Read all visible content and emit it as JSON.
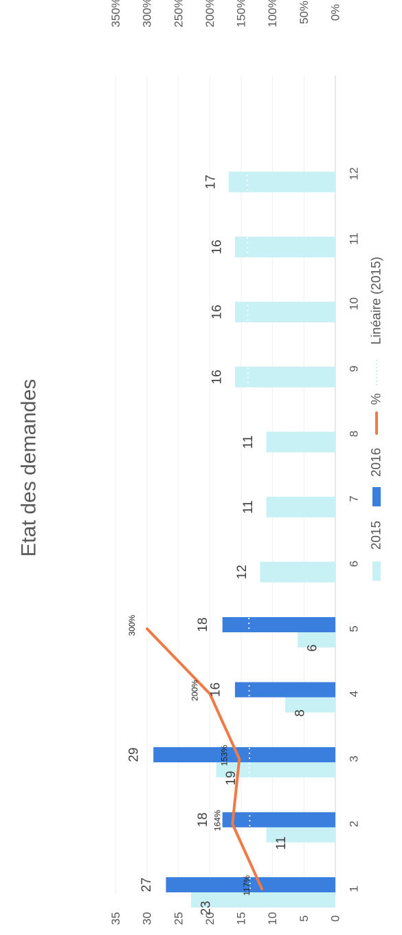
{
  "chart_data": {
    "type": "bar",
    "title": "Etat des demandes",
    "categories": [
      "1",
      "2",
      "3",
      "4",
      "5",
      "6",
      "7",
      "8",
      "9",
      "10",
      "11",
      "12"
    ],
    "series": [
      {
        "name": "2015",
        "kind": "bar",
        "color": "#c8f1f5",
        "values": [
          23,
          11,
          19,
          8,
          6,
          12,
          11,
          11,
          16,
          16,
          16,
          17
        ]
      },
      {
        "name": "2016",
        "kind": "bar",
        "color": "#3b7fde",
        "values": [
          27,
          18,
          29,
          16,
          18,
          null,
          null,
          null,
          null,
          null,
          null,
          null
        ]
      },
      {
        "name": "%",
        "kind": "line",
        "axis": "secondary",
        "color": "#ef7a45",
        "values": [
          117,
          164,
          153,
          200,
          300,
          null,
          null,
          null,
          null,
          null,
          null,
          null
        ],
        "labels": [
          "117%",
          "164%",
          "153%",
          "200%",
          "300%"
        ]
      },
      {
        "name": "Linéaire (2015)",
        "kind": "trendline",
        "color": "#c8f1f5"
      }
    ],
    "primary_axis": {
      "min": 0,
      "max": 35,
      "step": 5,
      "ticks": [
        "0",
        "5",
        "10",
        "15",
        "20",
        "25",
        "30",
        "35"
      ]
    },
    "secondary_axis": {
      "min": 0,
      "max": 350,
      "step": 50,
      "ticks": [
        "0%",
        "50%",
        "100%",
        "150%",
        "200%",
        "250%",
        "300%",
        "350%"
      ]
    },
    "grid": true,
    "legend_position": "bottom",
    "orientation": "rotated-90-clockwise"
  }
}
